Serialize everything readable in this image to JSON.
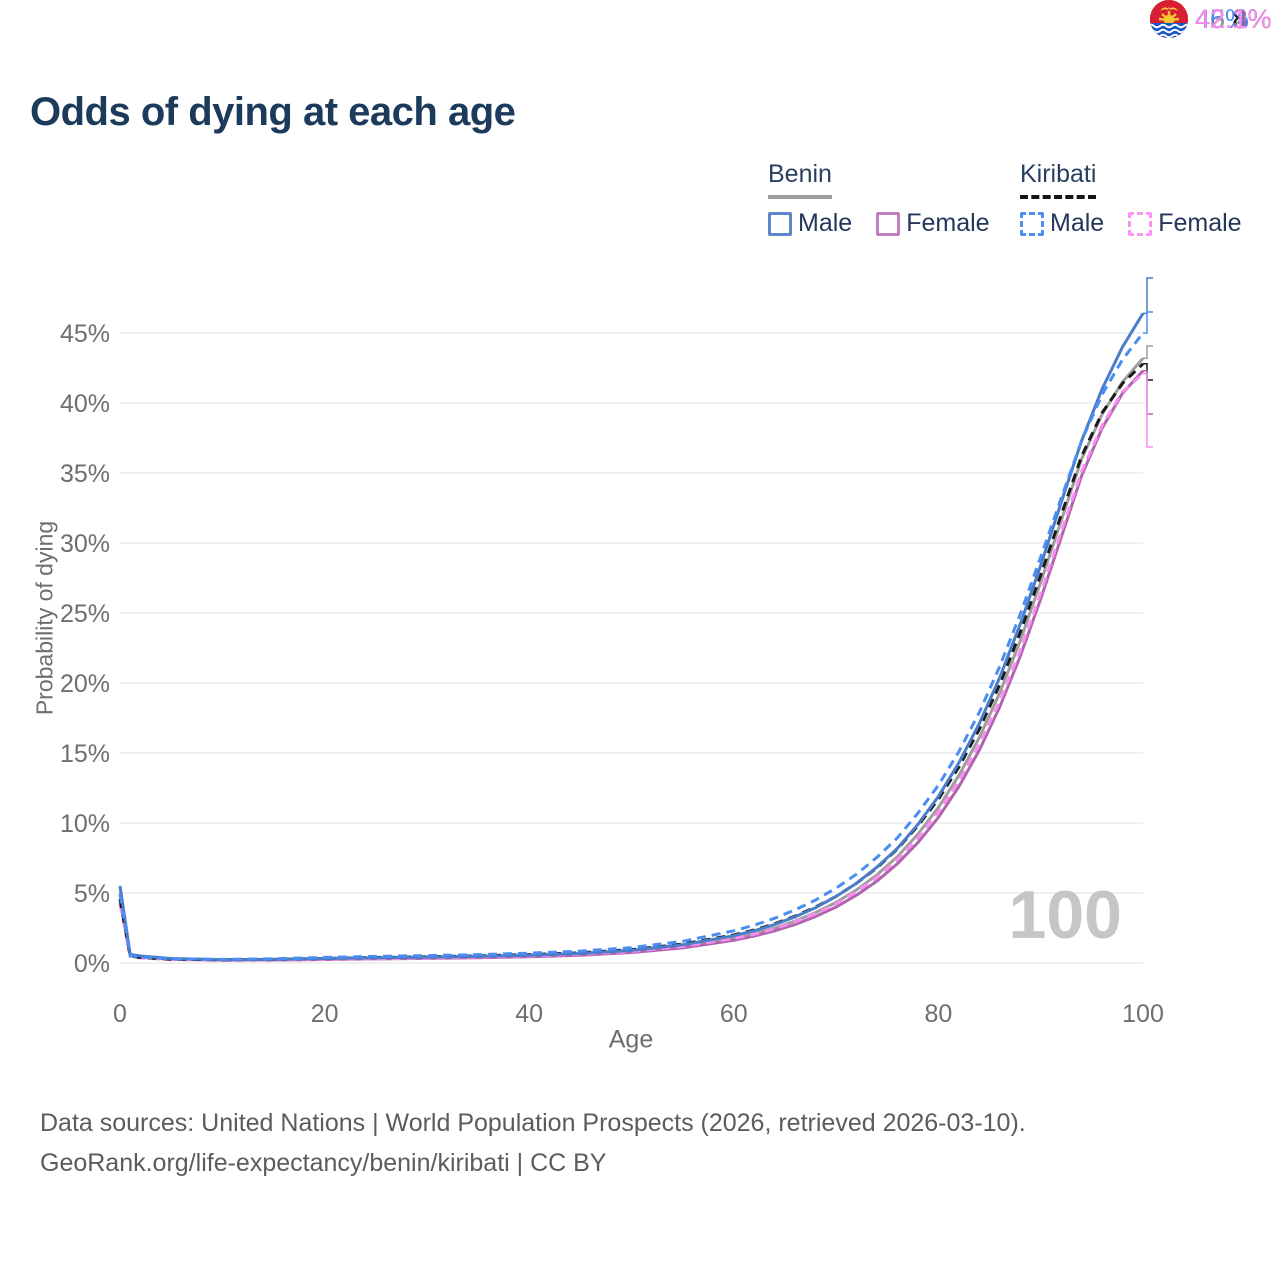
{
  "title": "Odds of dying at each age",
  "legend": {
    "groups": [
      {
        "name": "Benin",
        "underline_style": "solid",
        "underline_color": "#9e9e9e",
        "items": [
          {
            "label": "Male",
            "swatch_color": "#5b86c9",
            "swatch_style": "solid"
          },
          {
            "label": "Female",
            "swatch_color": "#c17fbe",
            "swatch_style": "solid"
          }
        ]
      },
      {
        "name": "Kiribati",
        "underline_style": "dashed",
        "underline_color": "#141414",
        "items": [
          {
            "label": "Male",
            "swatch_color": "#4b8ef3",
            "swatch_style": "dashed"
          },
          {
            "label": "Female",
            "swatch_color": "#fb93f0",
            "swatch_style": "dashed"
          }
        ]
      }
    ]
  },
  "y_axis_title": "Probability of dying",
  "x_axis_title": "Age",
  "age_cursor": "100",
  "end_labels": [
    {
      "flag": "benin",
      "text": "46.4%",
      "color": "#4a7cc7"
    },
    {
      "flag": "kiribati",
      "text": "45%",
      "color": "#4b8ef3"
    },
    {
      "flag": "benin",
      "text": "43.2%",
      "color": "#9e9e9e"
    },
    {
      "flag": "kiribati",
      "text": "42.8%",
      "color": "#1a1a1a"
    },
    {
      "flag": "benin",
      "text": "42.3%",
      "color": "#b164ae"
    },
    {
      "flag": "kiribati",
      "text": "42.1%",
      "color": "#f98df0"
    }
  ],
  "footer": {
    "line1": "Data sources: United Nations | World Population Prospects (2026, retrieved 2026-03-10).",
    "line2": "GeoRank.org/life-expectancy/benin/kiribati | CC BY"
  },
  "chart_data": {
    "type": "line",
    "title": "Odds of dying at each age",
    "xlabel": "Age",
    "ylabel": "Probability of dying",
    "xlim": [
      0,
      100
    ],
    "ylim": [
      0,
      48
    ],
    "grid": "horizontal",
    "legend_position": "top-right",
    "x_ticks": [
      0,
      20,
      40,
      60,
      80,
      100
    ],
    "x_tick_labels": [
      "0",
      "20",
      "40",
      "60",
      "80",
      "100"
    ],
    "y_ticks": [
      0,
      5,
      10,
      15,
      20,
      25,
      30,
      35,
      40,
      45
    ],
    "y_tick_labels": [
      "0%",
      "5%",
      "10%",
      "15%",
      "20%",
      "25%",
      "30%",
      "35%",
      "40%",
      "45%"
    ],
    "ages": [
      0,
      1,
      2,
      5,
      10,
      15,
      20,
      25,
      30,
      35,
      40,
      45,
      50,
      55,
      60,
      62,
      64,
      66,
      68,
      70,
      72,
      74,
      76,
      78,
      80,
      82,
      84,
      86,
      88,
      90,
      92,
      94,
      96,
      98,
      100
    ],
    "series": [
      {
        "name": "Benin Male",
        "country": "Benin",
        "sex": "Male",
        "style": "solid",
        "color": "#4a7cc7",
        "end_label": "46.4%",
        "values": [
          5.5,
          0.62,
          0.5,
          0.32,
          0.24,
          0.26,
          0.32,
          0.37,
          0.42,
          0.47,
          0.55,
          0.68,
          0.9,
          1.3,
          1.95,
          2.3,
          2.75,
          3.3,
          3.95,
          4.75,
          5.7,
          6.85,
          8.2,
          9.9,
          11.9,
          14.3,
          17.1,
          20.4,
          24.2,
          28.4,
          32.9,
          37.3,
          41.0,
          44.0,
          46.4
        ]
      },
      {
        "name": "Kiribati Male",
        "country": "Kiribati",
        "sex": "Male",
        "style": "dashed",
        "color": "#4b8ef3",
        "end_label": "45%",
        "values": [
          4.9,
          0.52,
          0.42,
          0.3,
          0.26,
          0.3,
          0.4,
          0.47,
          0.53,
          0.6,
          0.7,
          0.85,
          1.1,
          1.55,
          2.3,
          2.7,
          3.2,
          3.8,
          4.5,
          5.35,
          6.35,
          7.55,
          8.95,
          10.7,
          12.7,
          15.1,
          17.9,
          21.2,
          24.9,
          29.0,
          33.2,
          37.3,
          40.6,
          43.1,
          45.0
        ]
      },
      {
        "name": "Benin Both sexes",
        "country": "Benin",
        "sex": "Both",
        "style": "solid",
        "color": "#9e9e9e",
        "end_label": "43.2%",
        "values": [
          5.05,
          0.58,
          0.47,
          0.3,
          0.22,
          0.23,
          0.28,
          0.33,
          0.37,
          0.42,
          0.5,
          0.62,
          0.82,
          1.18,
          1.78,
          2.1,
          2.5,
          3.0,
          3.6,
          4.33,
          5.22,
          6.3,
          7.6,
          9.2,
          11.1,
          13.4,
          16.1,
          19.3,
          23.0,
          27.2,
          31.6,
          36.0,
          39.2,
          41.5,
          43.2
        ]
      },
      {
        "name": "Kiribati Both sexes",
        "country": "Kiribati",
        "sex": "Both",
        "style": "dashed",
        "color": "#1a1a1a",
        "end_label": "42.8%",
        "values": [
          4.55,
          0.49,
          0.39,
          0.27,
          0.23,
          0.26,
          0.33,
          0.39,
          0.44,
          0.51,
          0.6,
          0.73,
          0.96,
          1.36,
          2.0,
          2.36,
          2.8,
          3.35,
          4.0,
          4.76,
          5.7,
          6.8,
          8.15,
          9.8,
          11.7,
          14.0,
          16.7,
          19.9,
          23.6,
          27.7,
          32.0,
          36.2,
          39.3,
          41.4,
          42.8
        ]
      },
      {
        "name": "Benin Female",
        "country": "Benin",
        "sex": "Female",
        "style": "solid",
        "color": "#b164ae",
        "end_label": "42.3%",
        "values": [
          4.6,
          0.55,
          0.44,
          0.28,
          0.2,
          0.21,
          0.25,
          0.29,
          0.33,
          0.38,
          0.45,
          0.56,
          0.75,
          1.08,
          1.62,
          1.92,
          2.3,
          2.76,
          3.32,
          4.0,
          4.85,
          5.85,
          7.1,
          8.6,
          10.4,
          12.6,
          15.2,
          18.3,
          21.9,
          26.0,
          30.4,
          34.8,
          38.2,
          40.7,
          42.3
        ]
      },
      {
        "name": "Kiribati Female",
        "country": "Kiribati",
        "sex": "Female",
        "style": "dashed",
        "color": "#f98df0",
        "end_label": "42.1%",
        "values": [
          4.2,
          0.46,
          0.36,
          0.24,
          0.2,
          0.22,
          0.27,
          0.31,
          0.36,
          0.42,
          0.5,
          0.62,
          0.83,
          1.18,
          1.75,
          2.06,
          2.45,
          2.94,
          3.52,
          4.22,
          5.1,
          6.12,
          7.4,
          8.95,
          10.8,
          13.0,
          15.6,
          18.7,
          22.3,
          26.4,
          30.8,
          35.1,
          38.4,
          40.8,
          42.1
        ]
      }
    ]
  }
}
